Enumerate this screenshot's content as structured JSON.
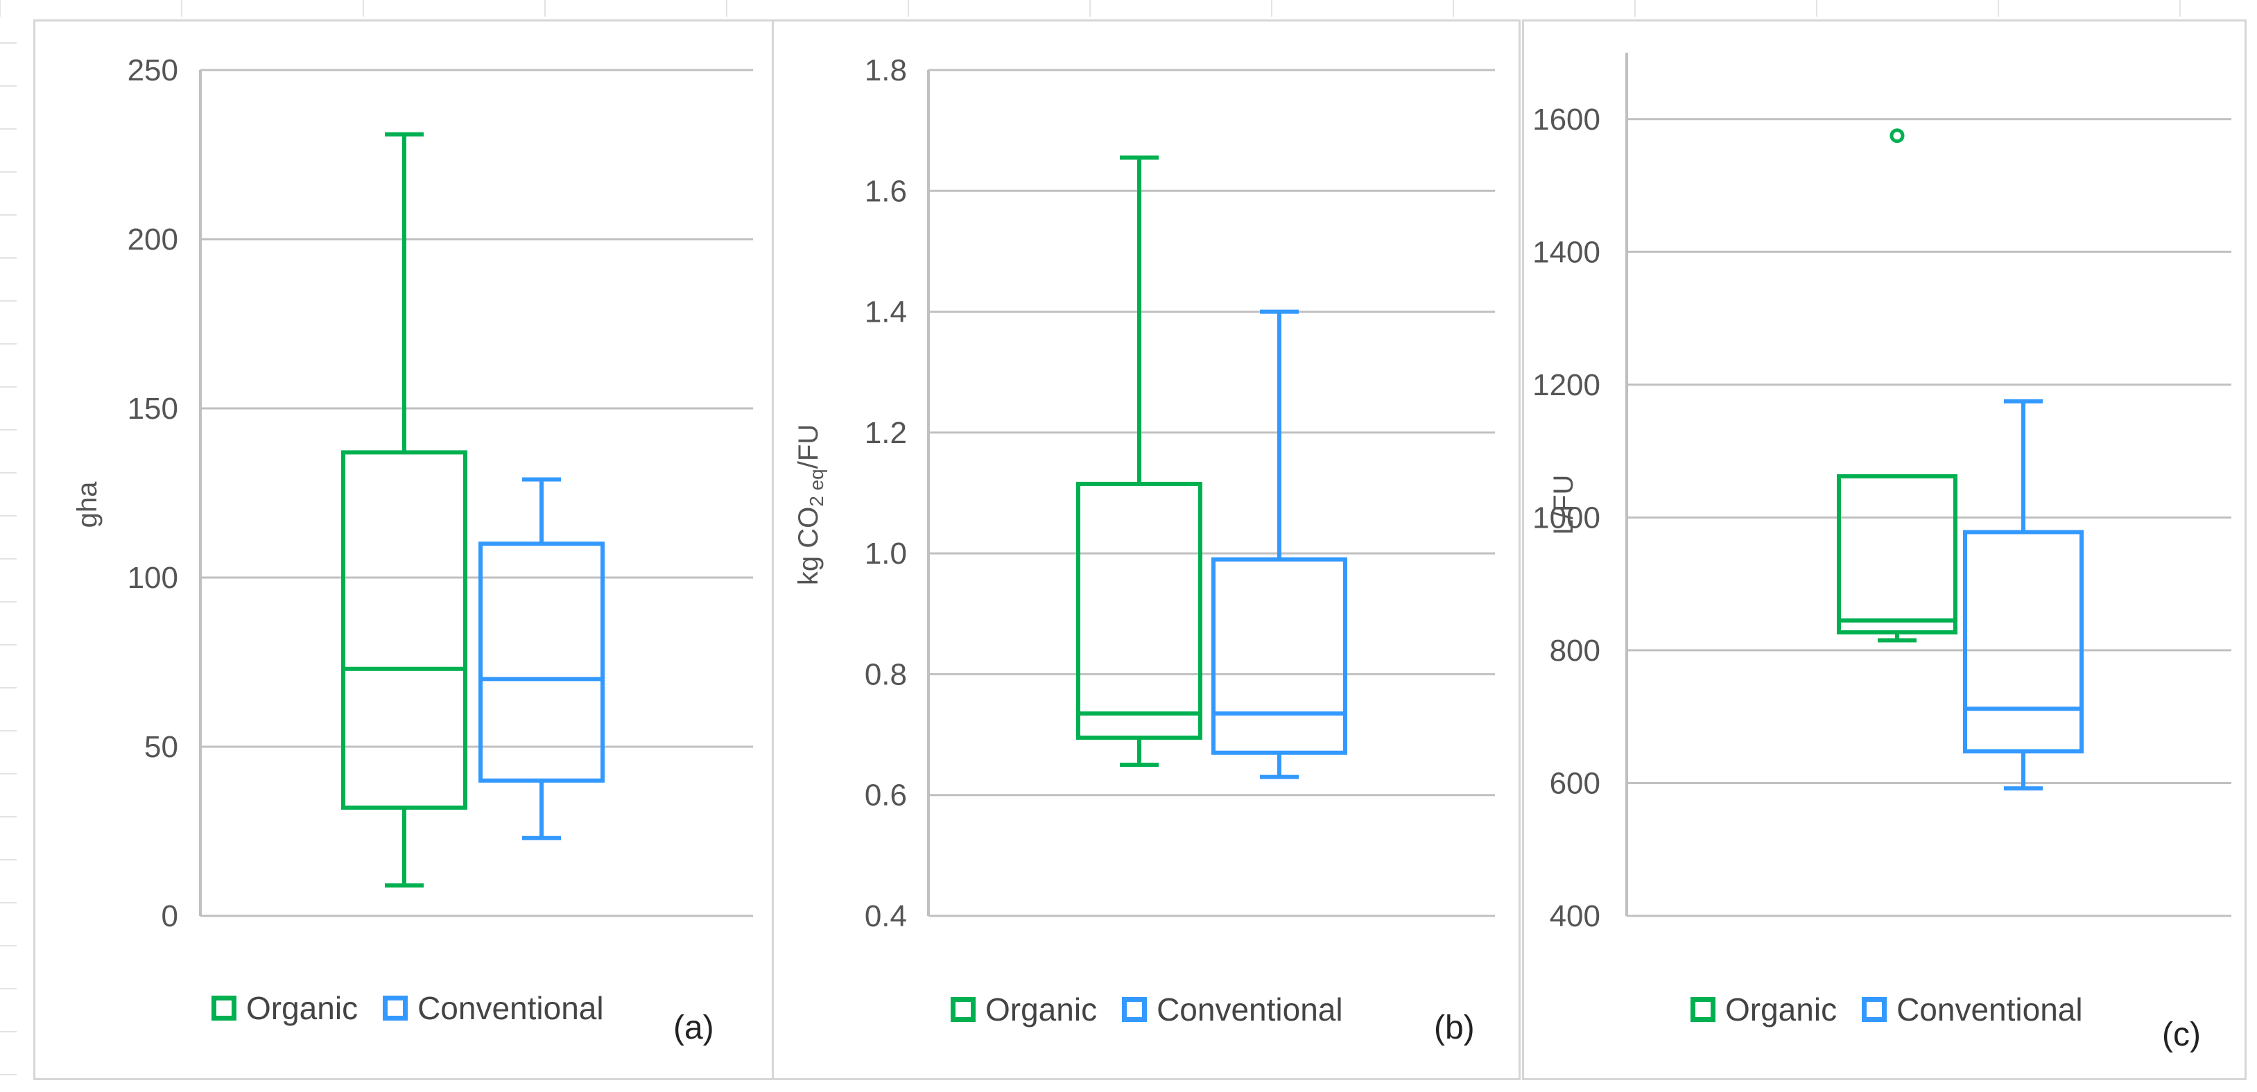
{
  "colors": {
    "organic": "#00b050",
    "conventional": "#3399ff",
    "grid": "#c0c0c0",
    "axis": "#c0c0c0"
  },
  "legend": {
    "organic": "Organic",
    "conventional": "Conventional"
  },
  "chart_data": [
    {
      "type": "box",
      "panel": "(a)",
      "ylabel": "gha",
      "ylim": [
        0,
        250
      ],
      "yticks": [
        0,
        50,
        100,
        150,
        200,
        250
      ],
      "grid": true,
      "legend_position": "bottom",
      "series": [
        {
          "name": "Organic",
          "min": 9,
          "q1": 32,
          "median": 73,
          "q3": 137,
          "max": 231,
          "outliers": []
        },
        {
          "name": "Conventional",
          "min": 23,
          "q1": 40,
          "median": 70,
          "q3": 110,
          "max": 129,
          "outliers": []
        }
      ]
    },
    {
      "type": "box",
      "panel": "(b)",
      "ylabel_parts": [
        "kg CO",
        "2 eq",
        "/FU"
      ],
      "ylim": [
        0.4,
        1.8
      ],
      "yticks": [
        "0.4",
        "0.6",
        "0.8",
        "1.0",
        "1.2",
        "1.4",
        "1.6",
        "1.8"
      ],
      "grid": true,
      "legend_position": "bottom",
      "series": [
        {
          "name": "Organic",
          "min": 0.65,
          "q1": 0.695,
          "median": 0.735,
          "q3": 1.115,
          "max": 1.655,
          "outliers": []
        },
        {
          "name": "Conventional",
          "min": 0.63,
          "q1": 0.67,
          "median": 0.735,
          "q3": 0.99,
          "max": 1.4,
          "outliers": []
        }
      ]
    },
    {
      "type": "box",
      "panel": "(c)",
      "ylabel": "L/FU",
      "ylim": [
        400,
        1700
      ],
      "yticks": [
        400,
        600,
        800,
        1000,
        1200,
        1400,
        1600
      ],
      "grid": true,
      "legend_position": "bottom",
      "series": [
        {
          "name": "Organic",
          "min": 815,
          "q1": 827,
          "median": 845,
          "q3": 1062,
          "max": 1062,
          "outliers": [
            1575
          ]
        },
        {
          "name": "Conventional",
          "min": 592,
          "q1": 648,
          "median": 712,
          "q3": 978,
          "max": 1175,
          "outliers": []
        }
      ]
    }
  ]
}
